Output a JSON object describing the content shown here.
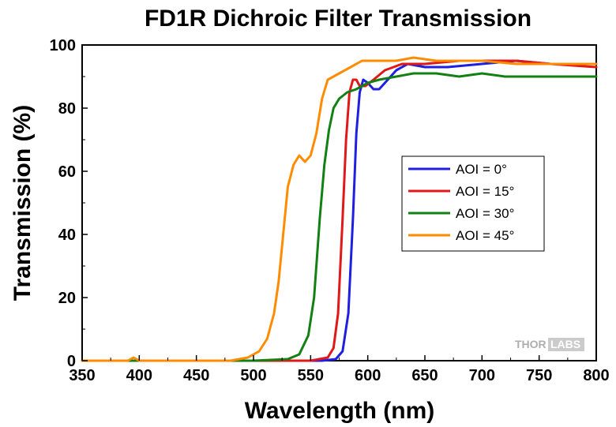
{
  "chart_data": {
    "type": "line",
    "title": "FD1R Dichroic Filter Transmission",
    "xlabel": "Wavelength (nm)",
    "ylabel": "Transmission (%)",
    "xlim": [
      350,
      800
    ],
    "ylim": [
      0,
      100
    ],
    "xticks": [
      "350",
      "400",
      "450",
      "500",
      "550",
      "600",
      "650",
      "700",
      "750",
      "800"
    ],
    "yticks": [
      "0",
      "20",
      "40",
      "60",
      "80",
      "100"
    ],
    "grid": false,
    "legend_position": "center-right",
    "series": [
      {
        "name": "AOI = 0°",
        "color": "#1f1fe0",
        "points": [
          [
            350,
            0
          ],
          [
            500,
            0
          ],
          [
            560,
            0
          ],
          [
            572,
            0.5
          ],
          [
            578,
            3
          ],
          [
            583,
            15
          ],
          [
            587,
            45
          ],
          [
            590,
            72
          ],
          [
            593,
            85
          ],
          [
            596,
            89
          ],
          [
            600,
            88
          ],
          [
            605,
            86
          ],
          [
            610,
            86
          ],
          [
            615,
            88
          ],
          [
            625,
            92
          ],
          [
            635,
            94
          ],
          [
            650,
            93
          ],
          [
            670,
            93
          ],
          [
            700,
            94
          ],
          [
            730,
            95
          ],
          [
            760,
            94
          ],
          [
            800,
            94
          ]
        ]
      },
      {
        "name": "AOI = 15°",
        "color": "#e01818",
        "points": [
          [
            350,
            0
          ],
          [
            500,
            0
          ],
          [
            550,
            0
          ],
          [
            565,
            1
          ],
          [
            570,
            4
          ],
          [
            574,
            15
          ],
          [
            578,
            45
          ],
          [
            581,
            70
          ],
          [
            584,
            85
          ],
          [
            587,
            89
          ],
          [
            590,
            89
          ],
          [
            593,
            87
          ],
          [
            598,
            87
          ],
          [
            605,
            89
          ],
          [
            615,
            92
          ],
          [
            630,
            94
          ],
          [
            650,
            94
          ],
          [
            680,
            95
          ],
          [
            700,
            95
          ],
          [
            730,
            95
          ],
          [
            760,
            94
          ],
          [
            800,
            93
          ]
        ]
      },
      {
        "name": "AOI = 30°",
        "color": "#128012",
        "points": [
          [
            350,
            0
          ],
          [
            500,
            0
          ],
          [
            530,
            0.5
          ],
          [
            540,
            2
          ],
          [
            548,
            8
          ],
          [
            553,
            20
          ],
          [
            558,
            45
          ],
          [
            562,
            62
          ],
          [
            566,
            73
          ],
          [
            570,
            80
          ],
          [
            575,
            83
          ],
          [
            582,
            85
          ],
          [
            590,
            86
          ],
          [
            600,
            88
          ],
          [
            610,
            89
          ],
          [
            625,
            90
          ],
          [
            640,
            91
          ],
          [
            660,
            91
          ],
          [
            680,
            90
          ],
          [
            700,
            91
          ],
          [
            720,
            90
          ],
          [
            760,
            90
          ],
          [
            800,
            90
          ]
        ]
      },
      {
        "name": "AOI = 45°",
        "color": "#ff8c00",
        "points": [
          [
            350,
            0
          ],
          [
            390,
            0
          ],
          [
            395,
            1
          ],
          [
            400,
            0
          ],
          [
            480,
            0
          ],
          [
            495,
            1
          ],
          [
            505,
            3
          ],
          [
            512,
            7
          ],
          [
            518,
            15
          ],
          [
            522,
            25
          ],
          [
            526,
            40
          ],
          [
            530,
            55
          ],
          [
            535,
            62
          ],
          [
            540,
            65
          ],
          [
            545,
            63
          ],
          [
            550,
            65
          ],
          [
            555,
            72
          ],
          [
            560,
            83
          ],
          [
            565,
            89
          ],
          [
            575,
            91
          ],
          [
            585,
            93
          ],
          [
            595,
            95
          ],
          [
            610,
            95
          ],
          [
            625,
            95
          ],
          [
            640,
            96
          ],
          [
            660,
            95
          ],
          [
            680,
            95
          ],
          [
            700,
            95
          ],
          [
            730,
            94
          ],
          [
            760,
            94
          ],
          [
            800,
            94
          ]
        ]
      }
    ]
  },
  "watermark": {
    "left": "THOR",
    "right": "LABS"
  }
}
